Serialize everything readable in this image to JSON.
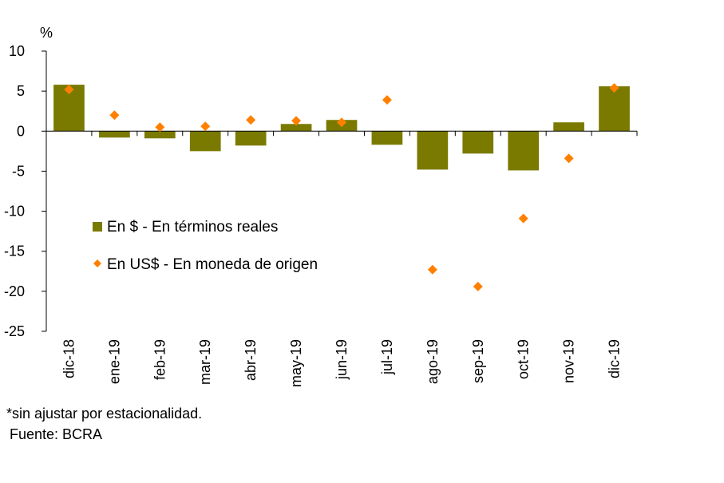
{
  "chart_data": {
    "type": "bar",
    "title": "",
    "ylabel": "%",
    "xlabel": "",
    "ylim": [
      -25,
      10
    ],
    "yticks": [
      10,
      5,
      0,
      -5,
      -10,
      -15,
      -20,
      -25
    ],
    "categories": [
      "dic-18",
      "ene-19",
      "feb-19",
      "mar-19",
      "abr-19",
      "may-19",
      "jun-19",
      "jul-19",
      "ago-19",
      "sep-19",
      "oct-19",
      "nov-19",
      "dic-19"
    ],
    "series": [
      {
        "name": "En $ - En términos reales",
        "kind": "bar",
        "color": "#7a7a00",
        "values": [
          5.8,
          -0.8,
          -0.9,
          -2.5,
          -1.8,
          0.9,
          1.4,
          -1.7,
          -4.8,
          -2.8,
          -4.9,
          1.1,
          5.6
        ]
      },
      {
        "name": "En US$ - En moneda de origen",
        "kind": "marker",
        "marker": "diamond",
        "color": "#ff8000",
        "values": [
          5.2,
          2.0,
          0.5,
          0.6,
          1.4,
          1.3,
          1.1,
          3.9,
          -17.3,
          -19.4,
          -10.9,
          -3.4,
          5.4
        ]
      }
    ],
    "legend_position": "center-left",
    "grid": false
  },
  "notes": {
    "line1": "*sin ajustar por estacionalidad.",
    "line2": "Fuente: BCRA"
  }
}
